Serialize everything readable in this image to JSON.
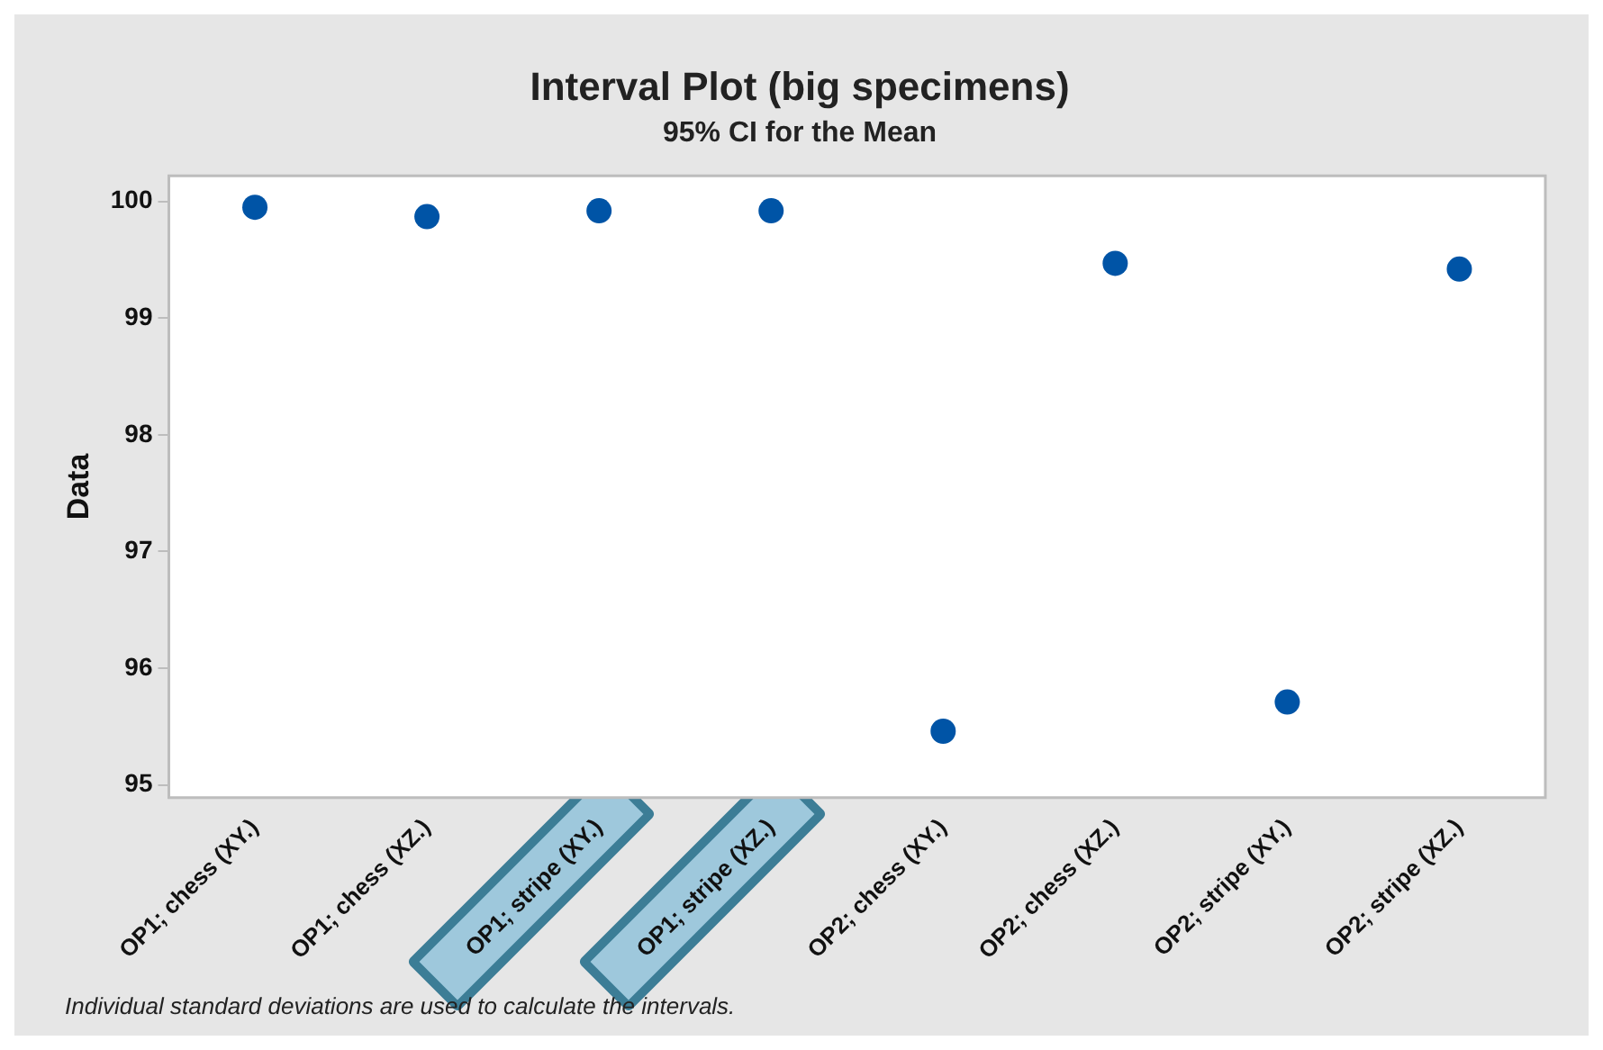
{
  "chart_data": {
    "type": "scatter",
    "title": "Interval Plot (big specimens)",
    "subtitle": "95% CI for the Mean",
    "ylabel": "Data",
    "categories": [
      "OP1; chess (XY.)",
      "OP1; chess (XZ.)",
      "OP1; stripe (XY.)",
      "OP1; stripe (XZ.)",
      "OP2; chess (XY.)",
      "OP2; chess (XZ.)",
      "OP2; stripe (XY.)",
      "OP2; stripe (XZ.)"
    ],
    "series": [
      {
        "color": "#0054a6",
        "values": [
          99.95,
          99.87,
          99.92,
          99.92,
          95.46,
          99.47,
          95.71,
          99.42
        ]
      }
    ],
    "ylim": [
      94.89,
      100.22
    ],
    "yticks": [
      95,
      96,
      97,
      98,
      99,
      100
    ],
    "grid": false,
    "legend": false,
    "marker": "circle",
    "annotations": [
      "Individual standard deviations are used to calculate the intervals."
    ]
  }
}
